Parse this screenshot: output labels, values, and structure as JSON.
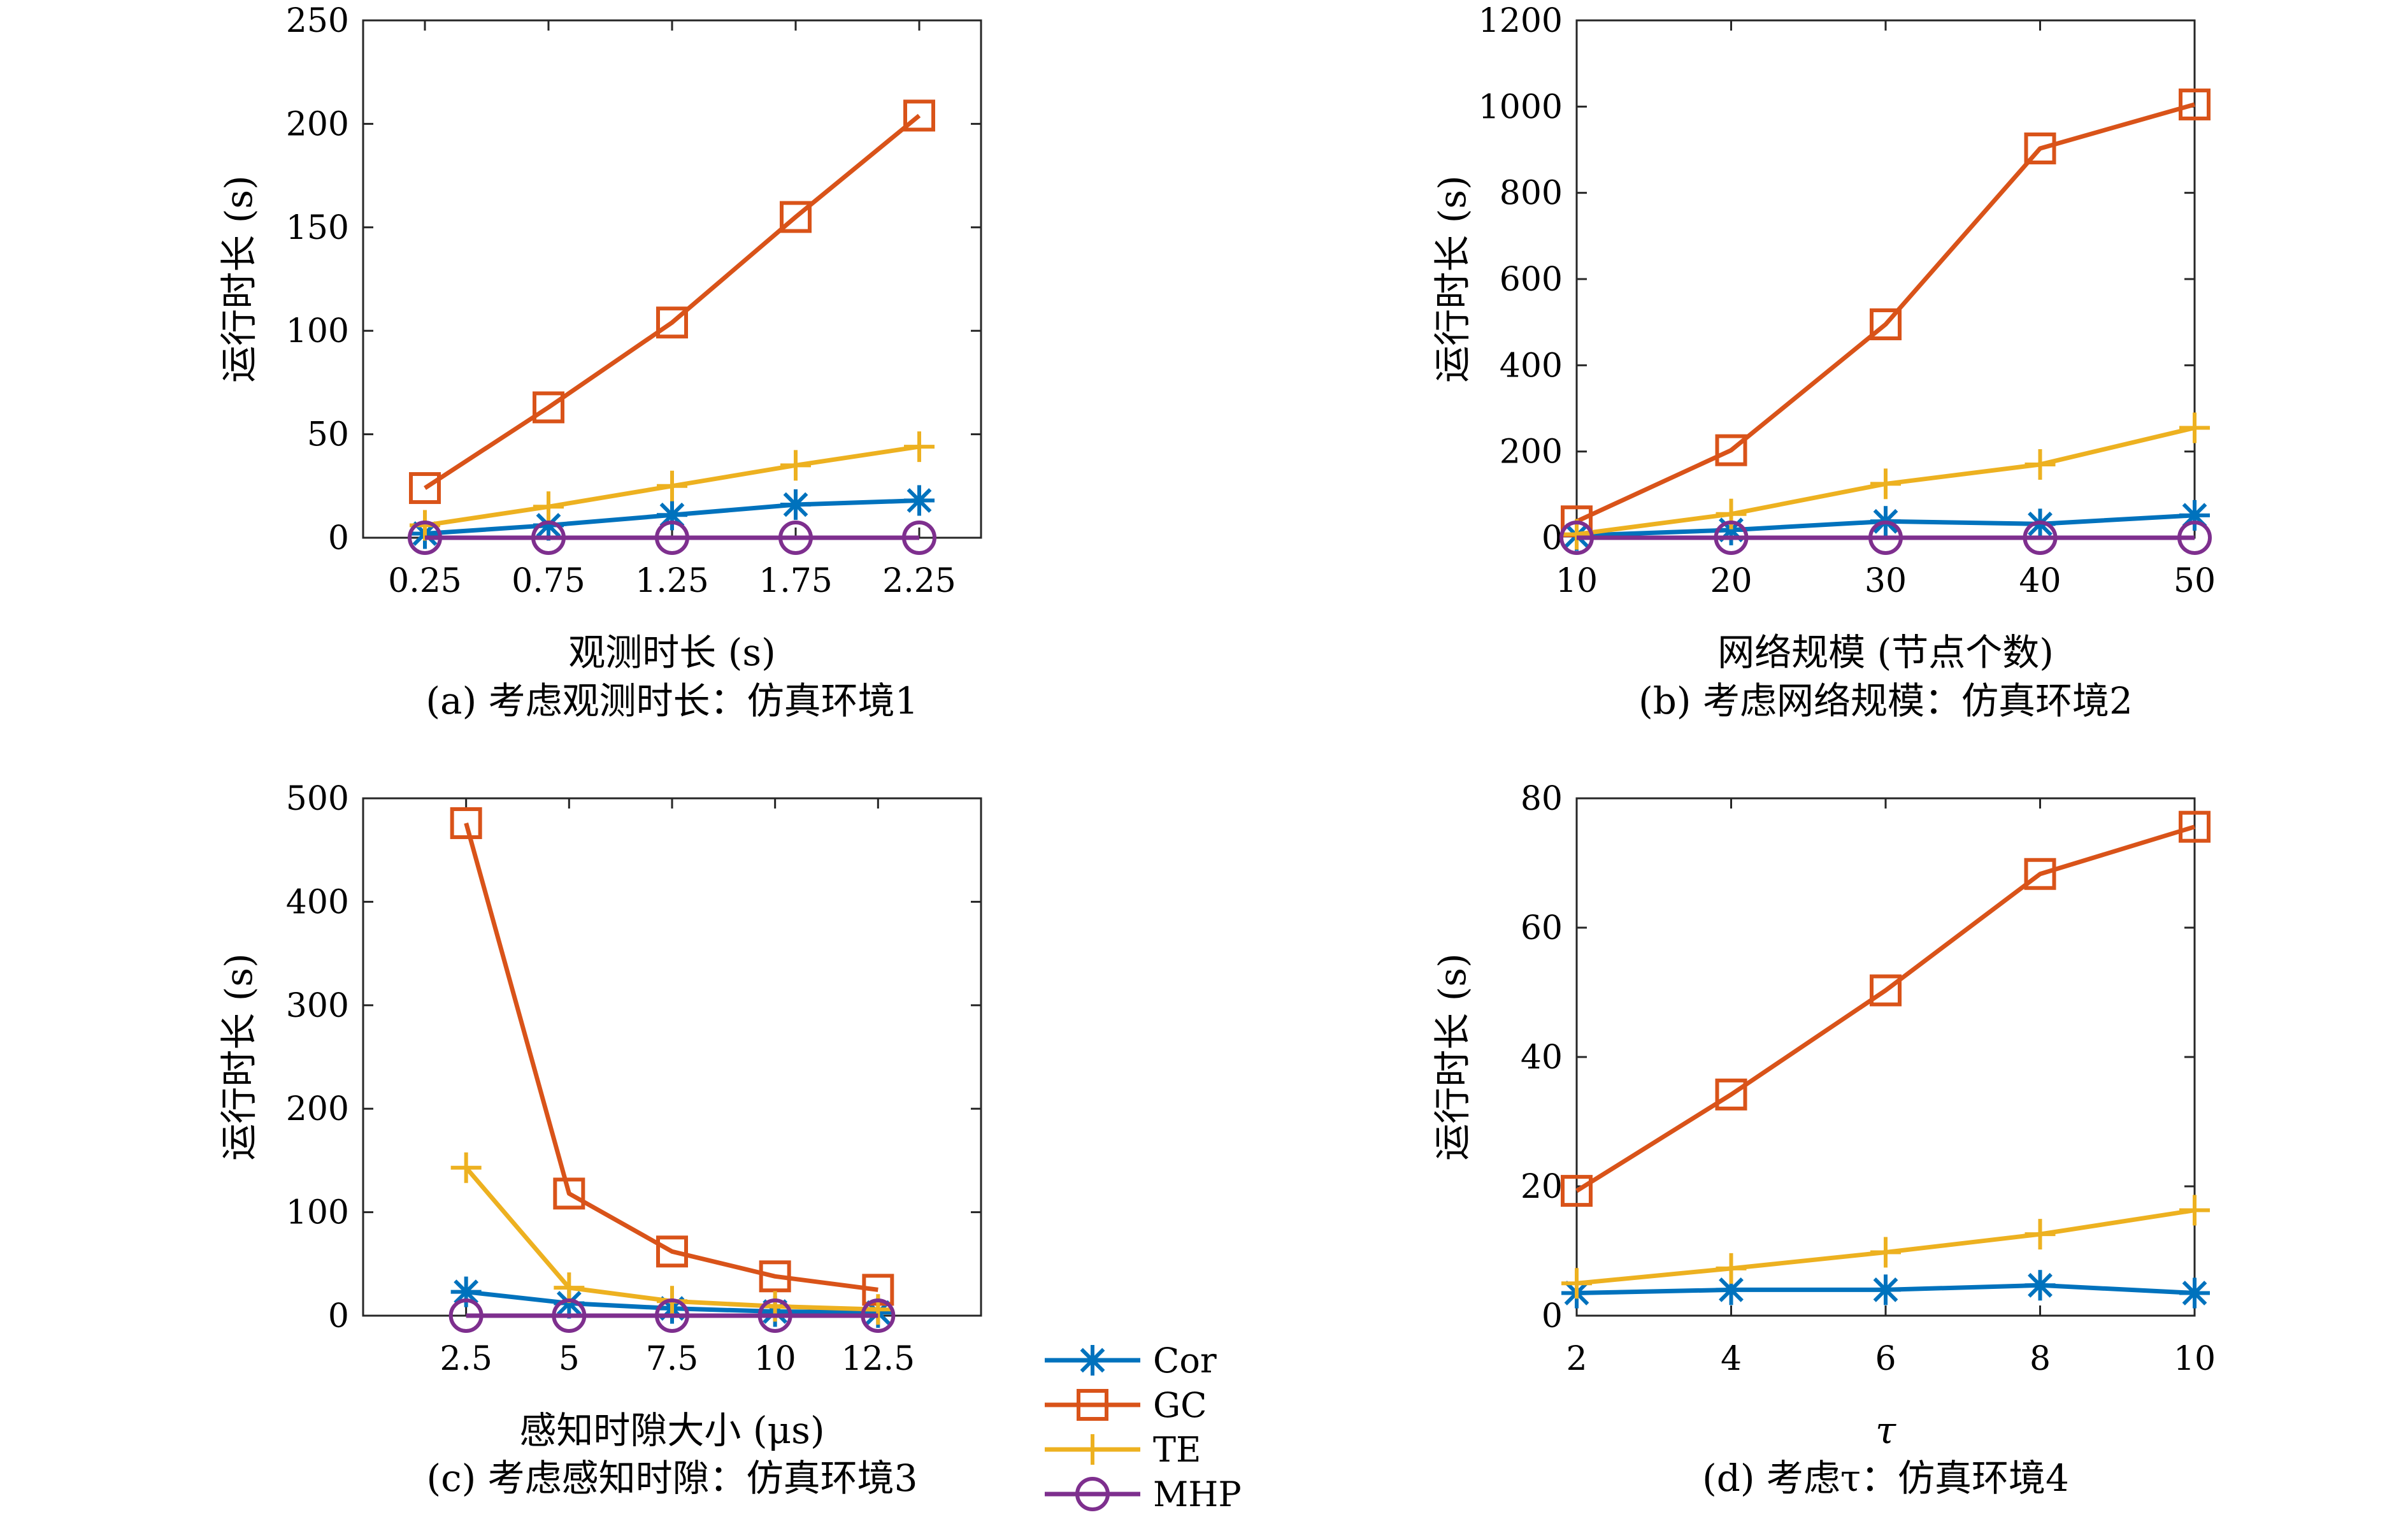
{
  "chart_data": [
    {
      "type": "line",
      "caption": "(a) 考虑观测时长：仿真环境1",
      "xlabel": "观测时长 (s)",
      "ylabel": "运行时长 (s)",
      "xlim": [
        0,
        2.5
      ],
      "ylim": [
        0,
        250
      ],
      "x": [
        0.25,
        0.75,
        1.25,
        1.75,
        2.25
      ],
      "xticks": [
        0.25,
        0.75,
        1.25,
        1.75,
        2.25
      ],
      "xtick_labels": [
        "0.25",
        "0.75",
        "1.25",
        "1.75",
        "2.25"
      ],
      "yticks": [
        0,
        50,
        100,
        150,
        200,
        250
      ],
      "ytick_labels": [
        "0",
        "50",
        "100",
        "150",
        "200",
        "250"
      ],
      "series": [
        {
          "name": "Cor",
          "values": [
            2,
            6,
            11,
            16,
            18
          ]
        },
        {
          "name": "GC",
          "values": [
            24,
            63,
            104,
            155,
            204
          ]
        },
        {
          "name": "TE",
          "values": [
            6,
            15,
            25,
            35,
            44
          ]
        },
        {
          "name": "MHP",
          "values": [
            0,
            0,
            0,
            0,
            0
          ]
        }
      ]
    },
    {
      "type": "line",
      "caption": "(b) 考虑网络规模：仿真环境2",
      "xlabel": "网络规模 (节点个数)",
      "ylabel": "运行时长 (s)",
      "xlim": [
        10,
        50
      ],
      "ylim": [
        0,
        1200
      ],
      "x": [
        10,
        20,
        30,
        40,
        50
      ],
      "xticks": [
        10,
        20,
        30,
        40,
        50
      ],
      "xtick_labels": [
        "10",
        "20",
        "30",
        "40",
        "50"
      ],
      "yticks": [
        0,
        200,
        400,
        600,
        800,
        1000,
        1200
      ],
      "ytick_labels": [
        "0",
        "200",
        "400",
        "600",
        "800",
        "1000",
        "1200"
      ],
      "series": [
        {
          "name": "Cor",
          "values": [
            5,
            18,
            38,
            32,
            52
          ]
        },
        {
          "name": "GC",
          "values": [
            38,
            203,
            495,
            903,
            1005
          ]
        },
        {
          "name": "TE",
          "values": [
            8,
            55,
            125,
            170,
            255
          ]
        },
        {
          "name": "MHP",
          "values": [
            0,
            0,
            0,
            0,
            0
          ]
        }
      ]
    },
    {
      "type": "line",
      "caption": "(c) 考虑感知时隙：仿真环境3",
      "xlabel": "感知时隙大小 (μs)",
      "ylabel": "运行时长 (s)",
      "xlim": [
        0,
        15
      ],
      "ylim": [
        0,
        500
      ],
      "x": [
        2.5,
        5,
        7.5,
        10,
        12.5
      ],
      "xticks": [
        2.5,
        5,
        7.5,
        10,
        12.5
      ],
      "xtick_labels": [
        "2.5",
        "5",
        "7.5",
        "10",
        "12.5"
      ],
      "yticks": [
        0,
        100,
        200,
        300,
        400,
        500
      ],
      "ytick_labels": [
        "0",
        "100",
        "200",
        "300",
        "400",
        "500"
      ],
      "series": [
        {
          "name": "Cor",
          "values": [
            23,
            12,
            7,
            4,
            3
          ]
        },
        {
          "name": "GC",
          "values": [
            476,
            118,
            62,
            38,
            25
          ]
        },
        {
          "name": "TE",
          "values": [
            143,
            27,
            14,
            9,
            6
          ]
        },
        {
          "name": "MHP",
          "values": [
            0,
            0,
            0,
            0,
            0
          ]
        }
      ]
    },
    {
      "type": "line",
      "caption": "(d) 考虑τ：仿真环境4",
      "xlabel": "τ",
      "ylabel": "运行时长 (s)",
      "xlim": [
        2,
        10
      ],
      "ylim": [
        0,
        80
      ],
      "x": [
        2,
        4,
        6,
        8,
        10
      ],
      "xticks": [
        2,
        4,
        6,
        8,
        10
      ],
      "xtick_labels": [
        "2",
        "4",
        "6",
        "8",
        "10"
      ],
      "yticks": [
        0,
        20,
        40,
        60,
        80
      ],
      "ytick_labels": [
        "0",
        "20",
        "40",
        "60",
        "80"
      ],
      "series": [
        {
          "name": "Cor",
          "values": [
            3.5,
            4,
            4,
            4.7,
            3.5
          ]
        },
        {
          "name": "GC",
          "values": [
            19.3,
            34.2,
            50.3,
            68.3,
            75.6
          ]
        },
        {
          "name": "TE",
          "values": [
            5,
            7.3,
            9.8,
            12.6,
            16.3
          ]
        }
      ]
    }
  ],
  "legend": {
    "placement": "bottom-center",
    "entries": [
      "Cor",
      "GC",
      "TE",
      "MHP"
    ]
  },
  "series_style": {
    "Cor": {
      "color": "#0072bd",
      "marker": "asterisk"
    },
    "GC": {
      "color": "#d95319",
      "marker": "square"
    },
    "TE": {
      "color": "#edb120",
      "marker": "plus"
    },
    "MHP": {
      "color": "#7e2f8e",
      "marker": "circle"
    }
  }
}
